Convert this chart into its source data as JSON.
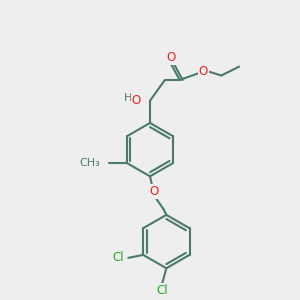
{
  "bg_color": "#eeeeee",
  "bond_color": "#4a7a6a",
  "o_color": "#ee2222",
  "cl_color": "#22aa22",
  "line_width": 1.5,
  "font_size": 8.5,
  "fig_size": [
    3.0,
    3.0
  ],
  "dpi": 100,
  "xlim": [
    0,
    10
  ],
  "ylim": [
    0,
    10
  ]
}
